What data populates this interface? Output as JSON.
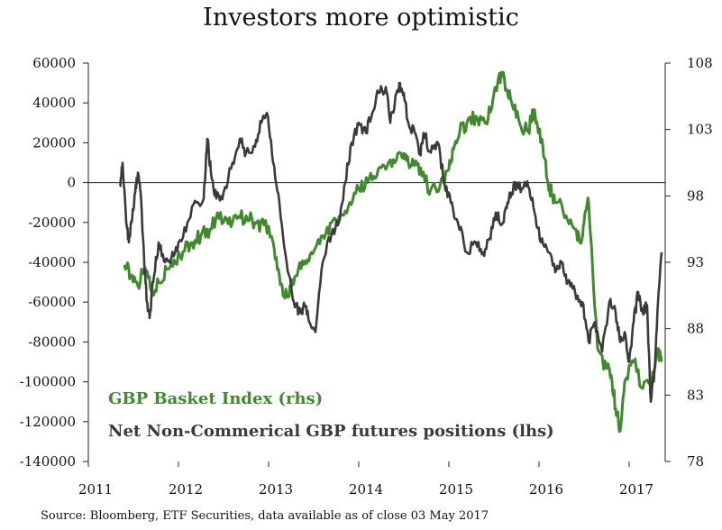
{
  "chart_data": {
    "type": "line",
    "title": "Investors more optimistic",
    "x_ticks": [
      "2011",
      "2012",
      "2013",
      "2014",
      "2015",
      "2016",
      "2017"
    ],
    "x_range": [
      2011.0,
      2017.4
    ],
    "y_left": {
      "range": [
        -140000,
        60000
      ],
      "ticks": [
        "60000",
        "40000",
        "20000",
        "0",
        "-20000",
        "-40000",
        "-60000",
        "-80000",
        "-100000",
        "-120000",
        "-140000"
      ]
    },
    "y_right": {
      "range": [
        78,
        108
      ],
      "ticks": [
        "108",
        "103",
        "98",
        "93",
        "88",
        "83",
        "78"
      ]
    },
    "series": [
      {
        "name": "GBP Basket Index (rhs)",
        "axis": "right",
        "color": "#3f8a2a",
        "x": [
          2011.4,
          2011.47,
          2011.55,
          2011.63,
          2011.7,
          2011.78,
          2011.87,
          2011.95,
          2012.05,
          2012.15,
          2012.25,
          2012.35,
          2012.45,
          2012.55,
          2012.65,
          2012.75,
          2012.85,
          2012.95,
          2013.05,
          2013.12,
          2013.18,
          2013.25,
          2013.33,
          2013.42,
          2013.5,
          2013.6,
          2013.7,
          2013.8,
          2013.9,
          2014.0,
          2014.1,
          2014.2,
          2014.3,
          2014.4,
          2014.5,
          2014.55,
          2014.62,
          2014.7,
          2014.8,
          2014.9,
          2015.0,
          2015.05,
          2015.12,
          2015.2,
          2015.3,
          2015.4,
          2015.47,
          2015.52,
          2015.58,
          2015.65,
          2015.72,
          2015.8,
          2015.88,
          2015.95,
          2016.0,
          2016.05,
          2016.1,
          2016.15,
          2016.2,
          2016.3,
          2016.4,
          2016.45,
          2016.5,
          2016.55,
          2016.65,
          2016.75,
          2016.8,
          2016.85,
          2016.9,
          2016.95,
          2017.05,
          2017.15,
          2017.25,
          2017.32,
          2017.36
        ],
        "values": [
          92.8,
          92.0,
          91.2,
          92.6,
          90.8,
          91.5,
          92.5,
          93.2,
          93.8,
          94.5,
          95.0,
          95.5,
          96.3,
          95.9,
          96.3,
          96.5,
          96.0,
          95.8,
          94.5,
          92.0,
          90.3,
          91.0,
          92.5,
          92.9,
          93.8,
          95.0,
          96.0,
          96.5,
          97.5,
          98.5,
          99.0,
          99.5,
          100.0,
          100.5,
          101.2,
          100.5,
          100.3,
          99.5,
          98.5,
          98.7,
          100.0,
          101.5,
          102.8,
          103.5,
          104.0,
          103.5,
          104.5,
          106.0,
          107.3,
          105.8,
          104.5,
          103.2,
          103.0,
          104.5,
          103.0,
          101.0,
          99.0,
          98.0,
          97.5,
          96.5,
          95.5,
          94.5,
          96.0,
          97.5,
          86.5,
          85.0,
          84.5,
          82.0,
          80.3,
          84.0,
          85.5,
          83.5,
          84.0,
          86.5,
          85.5
        ]
      },
      {
        "name": "Net Non-Commerical GBP futures positions (lhs)",
        "axis": "left",
        "color": "#3a3a3a",
        "x": [
          2011.35,
          2011.38,
          2011.42,
          2011.45,
          2011.48,
          2011.52,
          2011.55,
          2011.58,
          2011.62,
          2011.65,
          2011.68,
          2011.72,
          2011.78,
          2011.85,
          2011.92,
          2012.0,
          2012.1,
          2012.2,
          2012.28,
          2012.32,
          2012.36,
          2012.42,
          2012.5,
          2012.6,
          2012.68,
          2012.75,
          2012.85,
          2012.92,
          2012.98,
          2013.05,
          2013.12,
          2013.2,
          2013.28,
          2013.35,
          2013.4,
          2013.45,
          2013.52,
          2013.6,
          2013.7,
          2013.78,
          2013.85,
          2013.92,
          2014.0,
          2014.08,
          2014.15,
          2014.22,
          2014.3,
          2014.35,
          2014.4,
          2014.45,
          2014.5,
          2014.55,
          2014.62,
          2014.68,
          2014.72,
          2014.8,
          2014.88,
          2014.95,
          2015.02,
          2015.1,
          2015.2,
          2015.3,
          2015.38,
          2015.45,
          2015.52,
          2015.6,
          2015.65,
          2015.7,
          2015.75,
          2015.82,
          2015.88,
          2015.95,
          2016.02,
          2016.1,
          2016.18,
          2016.25,
          2016.32,
          2016.4,
          2016.48,
          2016.55,
          2016.62,
          2016.7,
          2016.78,
          2016.85,
          2016.9,
          2016.95,
          2017.0,
          2017.05,
          2017.1,
          2017.15,
          2017.2,
          2017.24,
          2017.28,
          2017.32,
          2017.36
        ],
        "values": [
          -2000,
          10000,
          -20000,
          -30000,
          -20000,
          -5000,
          5000,
          -5000,
          -40000,
          -60000,
          -68000,
          -50000,
          -30000,
          -40000,
          -38000,
          -30000,
          -20000,
          -10000,
          -8000,
          22000,
          5000,
          -8000,
          -5000,
          10000,
          22000,
          15000,
          18000,
          30000,
          35000,
          10000,
          -10000,
          -40000,
          -60000,
          -65000,
          -62000,
          -70000,
          -75000,
          -40000,
          -25000,
          -20000,
          0,
          20000,
          30000,
          25000,
          35000,
          45000,
          48000,
          30000,
          40000,
          50000,
          45000,
          30000,
          25000,
          15000,
          25000,
          15000,
          20000,
          0,
          -10000,
          -20000,
          -35000,
          -30000,
          -35000,
          -28000,
          -15000,
          -20000,
          -10000,
          -5000,
          0,
          -3000,
          -2000,
          -15000,
          -30000,
          -35000,
          -45000,
          -40000,
          -50000,
          -55000,
          -60000,
          -80000,
          -70000,
          -85000,
          -60000,
          -65000,
          -80000,
          -75000,
          -90000,
          -70000,
          -55000,
          -65000,
          -62000,
          -110000,
          -95000,
          -60000,
          -35000
        ]
      }
    ]
  },
  "legend": {
    "green_label": "GBP Basket Index (rhs)",
    "dark_label": "Net Non-Commerical GBP futures positions (lhs)"
  },
  "source": "Source: Bloomberg, ETF Securities, data available as of close 03 May 2017"
}
